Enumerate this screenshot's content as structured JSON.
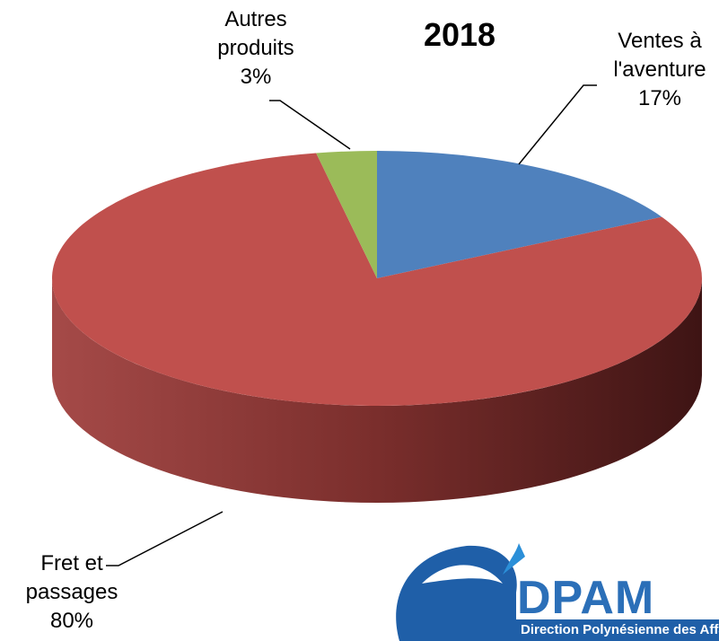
{
  "chart_data": {
    "type": "pie3d",
    "title": "2018",
    "categories": [
      "Ventes à l'aventure",
      "Fret et passages",
      "Autres produits"
    ],
    "values": [
      17,
      80,
      3
    ],
    "value_labels": [
      "17%",
      "80%",
      "3%"
    ],
    "colors": [
      "#4f81bd",
      "#c0504d",
      "#9bbb59"
    ]
  },
  "logo": {
    "name": "DPAM",
    "subtitle": "Direction Polynésienne des Affaire"
  }
}
